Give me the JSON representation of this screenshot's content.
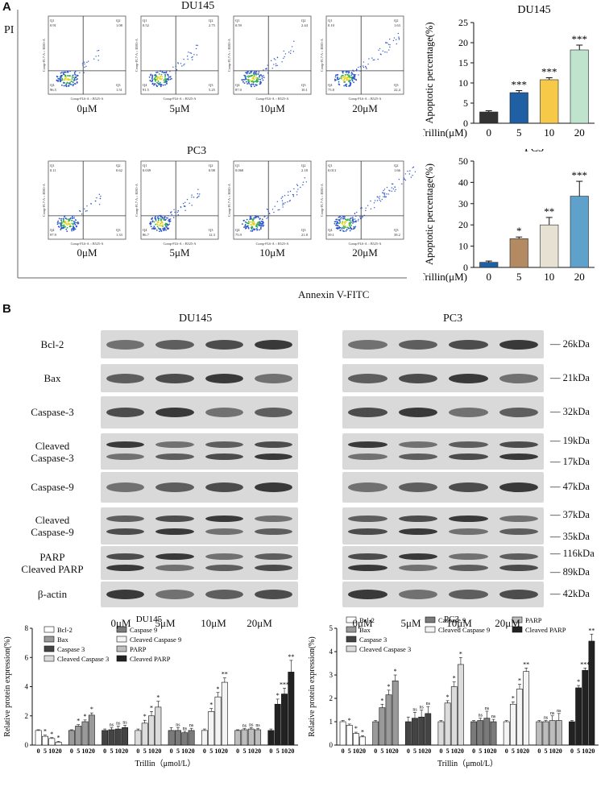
{
  "panelA": {
    "letter": "A",
    "du145_title": "DU145",
    "pc3_title": "PC3",
    "y_axis": "PI",
    "x_axis": "Annexin V-FITC",
    "concentrations": [
      "0μM",
      "5μM",
      "10μM",
      "20μM"
    ],
    "quadrant_labels": [
      "Q1",
      "Q2",
      "Q3",
      "Q4"
    ],
    "flow_axis_x": "Comp-FL6-A :: B525-A",
    "flow_axis_y": "Comp-FL7-A :: B585-A",
    "du145_quadrants": [
      {
        "q1": "0.91",
        "q2": "1.08",
        "q3": "1.51",
        "q4": "96.5"
      },
      {
        "q1": "0.52",
        "q2": "2.75",
        "q3": "5.25",
        "q4": "91.5"
      },
      {
        "q1": "0.59",
        "q2": "2.44",
        "q3": "10.1",
        "q4": "87.0"
      },
      {
        "q1": "0.10",
        "q2": "1.63",
        "q3": "22.4",
        "q4": "75.8"
      }
    ],
    "pc3_quadrants": [
      {
        "q1": "0.11",
        "q2": "0.62",
        "q3": "1.33",
        "q4": "97.9"
      },
      {
        "q1": "0.039",
        "q2": "0.98",
        "q3": "12.3",
        "q4": "86.7"
      },
      {
        "q1": "0.060",
        "q2": "2.18",
        "q3": "21.8",
        "q4": "75.9"
      },
      {
        "q1": "0.013",
        "q2": "1.66",
        "q3": "39.2",
        "q4": "59.1"
      }
    ]
  },
  "chart_data": [
    {
      "type": "bar",
      "title": "DU145",
      "xlabel": "Trillin(μM)",
      "ylabel": "Apoptotic percentage(%)",
      "categories": [
        "0",
        "5",
        "10",
        "20"
      ],
      "values": [
        2.8,
        7.6,
        10.8,
        18.2
      ],
      "errors": [
        0.3,
        0.5,
        0.5,
        1.2
      ],
      "significance": [
        "",
        "***",
        "***",
        "***"
      ],
      "colors": [
        "#333333",
        "#1f5fa3",
        "#f7c948",
        "#bfe3cd"
      ],
      "ylim": [
        0,
        25
      ],
      "yticks": [
        "0",
        "5",
        "10",
        "15",
        "20",
        "25"
      ]
    },
    {
      "type": "bar",
      "title": "PC3",
      "xlabel": "Trillin(μM)",
      "ylabel": "Apoptotic percentage(%)",
      "categories": [
        "0",
        "5",
        "10",
        "20"
      ],
      "values": [
        2.4,
        13.5,
        20.0,
        33.5
      ],
      "errors": [
        0.6,
        0.8,
        3.5,
        7.0
      ],
      "significance": [
        "",
        "*",
        "**",
        "***"
      ],
      "colors": [
        "#1f5fa3",
        "#b48a63",
        "#e6e1d3",
        "#5ea2cc"
      ],
      "ylim": [
        0,
        50
      ],
      "yticks": [
        "0",
        "10",
        "20",
        "30",
        "40",
        "50"
      ]
    },
    {
      "type": "bar",
      "title": "DU145",
      "ylabel": "Relative protein expression(%)",
      "xlabel": "Trillin（μmol/L）",
      "ylim": [
        0,
        8
      ],
      "yticks": [
        "0",
        "2",
        "4",
        "6",
        "8"
      ],
      "tick_labels": [
        "0",
        "5",
        "10",
        "20"
      ],
      "series": [
        {
          "name": "Bcl-2",
          "values": [
            1.0,
            0.6,
            0.45,
            0.2
          ],
          "errors": [
            0.05,
            0.08,
            0.06,
            0.05
          ],
          "sig": [
            "",
            "*",
            "*",
            "*"
          ]
        },
        {
          "name": "Bax",
          "values": [
            1.0,
            1.3,
            1.6,
            2.05
          ],
          "errors": [
            0.05,
            0.1,
            0.12,
            0.15
          ],
          "sig": [
            "",
            "*",
            "*",
            "*"
          ]
        },
        {
          "name": "Caspase 3",
          "values": [
            1.0,
            1.05,
            1.1,
            1.2
          ],
          "errors": [
            0.1,
            0.15,
            0.2,
            0.15
          ],
          "sig": [
            "",
            "ns",
            "ns",
            "ns"
          ]
        },
        {
          "name": "Cleaved Caspase 3",
          "values": [
            1.0,
            1.5,
            2.0,
            2.6
          ],
          "errors": [
            0.1,
            0.2,
            0.3,
            0.4
          ],
          "sig": [
            "",
            "*",
            "*",
            "*"
          ]
        },
        {
          "name": "Caspase 9",
          "values": [
            1.0,
            1.0,
            0.85,
            1.0
          ],
          "errors": [
            0.2,
            0.2,
            0.1,
            0.15
          ],
          "sig": [
            "",
            "ns",
            "ns",
            "ns"
          ]
        },
        {
          "name": "Cleaved Caspase 9",
          "values": [
            1.0,
            2.3,
            3.3,
            4.3
          ],
          "errors": [
            0.1,
            0.2,
            0.3,
            0.3
          ],
          "sig": [
            "",
            "*",
            "*",
            "**"
          ]
        },
        {
          "name": "PARP",
          "values": [
            1.0,
            1.05,
            1.1,
            1.05
          ],
          "errors": [
            0.05,
            0.08,
            0.1,
            0.1
          ],
          "sig": [
            "",
            "ns",
            "ns",
            "ns"
          ]
        },
        {
          "name": "Cleaved PARP",
          "values": [
            1.0,
            2.8,
            3.5,
            5.0
          ],
          "errors": [
            0.1,
            0.35,
            0.4,
            0.8
          ],
          "sig": [
            "",
            "*",
            "***",
            "**"
          ]
        }
      ]
    },
    {
      "type": "bar",
      "title": "PC3",
      "ylabel": "Relative protein expression(%)",
      "xlabel": "Trillin（μmol/L）",
      "ylim": [
        0,
        5
      ],
      "yticks": [
        "0",
        "1",
        "2",
        "3",
        "4",
        "5"
      ],
      "tick_labels": [
        "0",
        "5",
        "10",
        "20"
      ],
      "series": [
        {
          "name": "Bcl-2",
          "values": [
            1.0,
            0.85,
            0.5,
            0.35
          ],
          "errors": [
            0.05,
            0.05,
            0.05,
            0.05
          ],
          "sig": [
            "",
            "*",
            "*",
            "*"
          ]
        },
        {
          "name": "Bax",
          "values": [
            1.0,
            1.6,
            2.15,
            2.75
          ],
          "errors": [
            0.05,
            0.15,
            0.2,
            0.25
          ],
          "sig": [
            "",
            "*",
            "*",
            "*"
          ]
        },
        {
          "name": "Caspase 3",
          "values": [
            1.0,
            1.15,
            1.2,
            1.35
          ],
          "errors": [
            0.2,
            0.25,
            0.3,
            0.3
          ],
          "sig": [
            "",
            "ns",
            "ns",
            "ns"
          ]
        },
        {
          "name": "Cleaved Caspase 3",
          "values": [
            1.0,
            1.8,
            2.5,
            3.45
          ],
          "errors": [
            0.05,
            0.1,
            0.2,
            0.3
          ],
          "sig": [
            "",
            "*",
            "*",
            "*"
          ]
        },
        {
          "name": "Caspase 9",
          "values": [
            1.0,
            1.05,
            1.15,
            1.0
          ],
          "errors": [
            0.05,
            0.1,
            0.3,
            0.1
          ],
          "sig": [
            "",
            "ns",
            "ns",
            "ns"
          ]
        },
        {
          "name": "Cleaved Caspase 9",
          "values": [
            1.0,
            1.75,
            2.4,
            3.15
          ],
          "errors": [
            0.05,
            0.1,
            0.2,
            0.15
          ],
          "sig": [
            "",
            "*",
            "*",
            "**"
          ]
        },
        {
          "name": "PARP",
          "values": [
            1.0,
            1.0,
            1.05,
            1.05
          ],
          "errors": [
            0.05,
            0.05,
            0.2,
            0.3
          ],
          "sig": [
            "",
            "ns",
            "ns",
            "ns"
          ]
        },
        {
          "name": "Cleaved PARP",
          "values": [
            1.0,
            2.45,
            3.2,
            4.45
          ],
          "errors": [
            0.05,
            0.1,
            0.1,
            0.3
          ],
          "sig": [
            "",
            "*",
            "***",
            "**"
          ]
        }
      ]
    }
  ],
  "panelB": {
    "letter": "B",
    "du145_title": "DU145",
    "pc3_title": "PC3",
    "concentrations": [
      "0μM",
      "5μM",
      "10μM",
      "20μM"
    ],
    "rows": [
      {
        "label": "Bcl-2",
        "kda": [
          "26kDa"
        ]
      },
      {
        "label": "Bax",
        "kda": [
          "21kDa"
        ]
      },
      {
        "label": "Caspase-3",
        "kda": [
          "32kDa"
        ]
      },
      {
        "label": "Cleaved\nCaspase-3",
        "kda": [
          "19kDa",
          "17kDa"
        ]
      },
      {
        "label": "Caspase-9",
        "kda": [
          "47kDa"
        ]
      },
      {
        "label": "Cleaved\nCaspase-9",
        "kda": [
          "37kDa",
          "35kDa"
        ]
      },
      {
        "label": "PARP\nCleaved PARP",
        "kda": [
          "116kDa",
          "89kDa"
        ]
      },
      {
        "label": "β-actin",
        "kda": [
          "42kDa"
        ]
      }
    ]
  }
}
